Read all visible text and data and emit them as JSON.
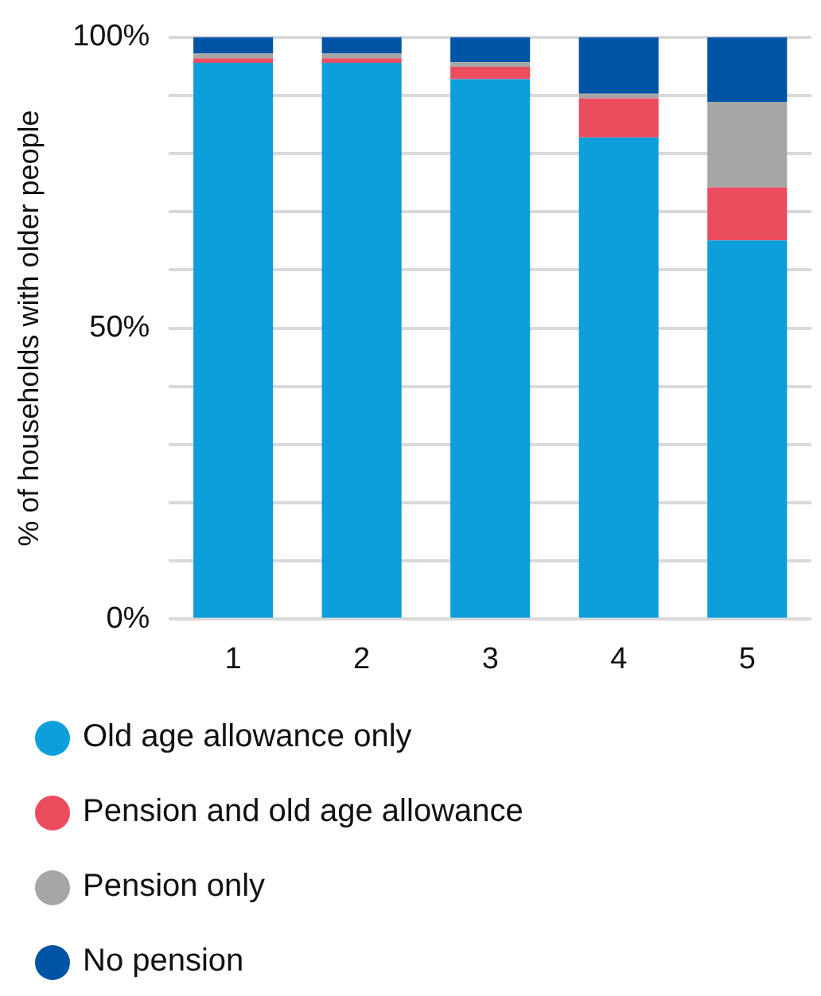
{
  "chart_data": {
    "type": "bar",
    "stacked": true,
    "ylabel": "% of households with older people",
    "categories": [
      "1",
      "2",
      "3",
      "4",
      "5"
    ],
    "series": [
      {
        "name": "Old age allowance only",
        "color": "#0c9fdb",
        "values": [
          95.6,
          95.6,
          92.8,
          82.8,
          65.1
        ]
      },
      {
        "name": "Pension and old age allowance",
        "color": "#eb4d5f",
        "values": [
          0.8,
          0.8,
          2.1,
          6.7,
          9.1
        ]
      },
      {
        "name": "Pension only",
        "color": "#a5a6a5",
        "values": [
          0.8,
          0.8,
          0.8,
          0.8,
          14.7
        ]
      },
      {
        "name": "No pension",
        "color": "#0054a6",
        "values": [
          2.8,
          2.8,
          4.3,
          9.7,
          11.1
        ]
      }
    ],
    "ylim": [
      0,
      100
    ],
    "yticks": [
      {
        "value": 0,
        "label": "0%"
      },
      {
        "value": 10,
        "label": null
      },
      {
        "value": 20,
        "label": null
      },
      {
        "value": 30,
        "label": null
      },
      {
        "value": 40,
        "label": null
      },
      {
        "value": 50,
        "label": "50%"
      },
      {
        "value": 60,
        "label": null
      },
      {
        "value": 70,
        "label": null
      },
      {
        "value": 80,
        "label": null
      },
      {
        "value": 90,
        "label": null
      },
      {
        "value": 100,
        "label": "100%"
      }
    ],
    "grid": "y",
    "legend": "bottom"
  }
}
